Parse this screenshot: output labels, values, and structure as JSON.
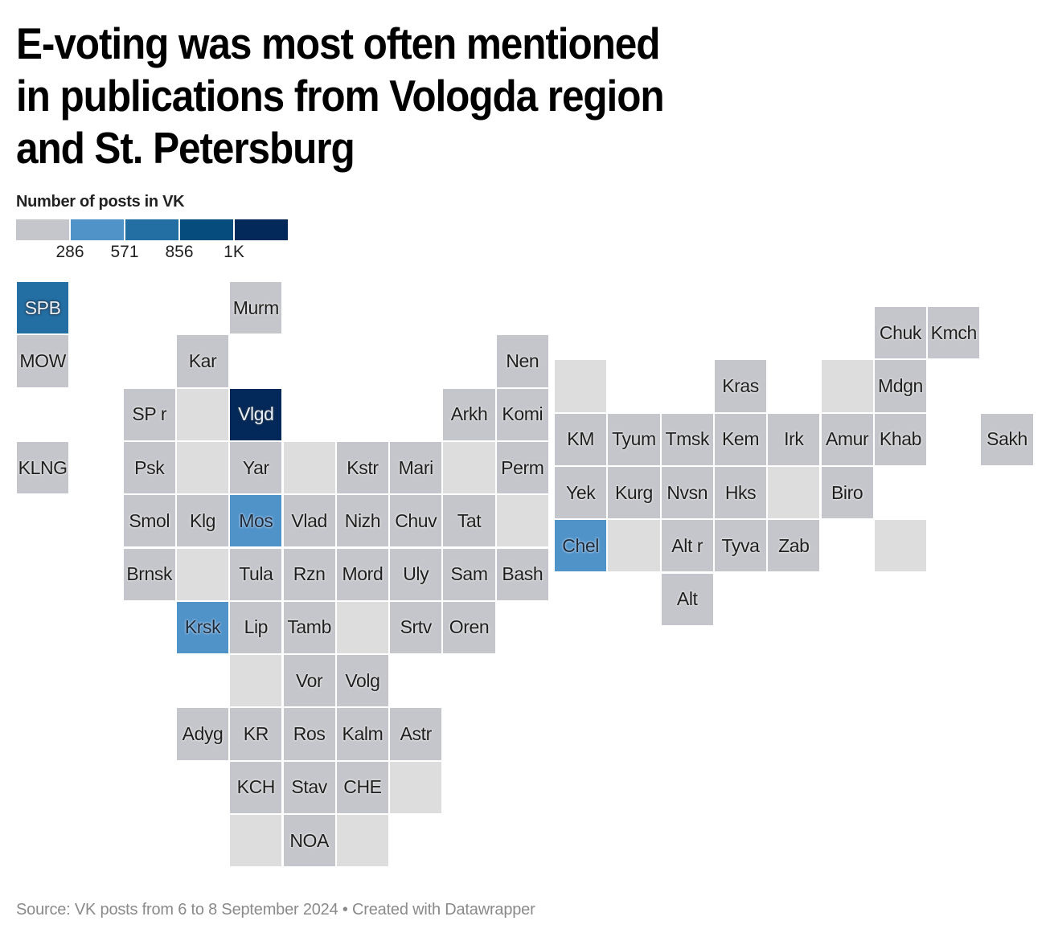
{
  "title_lines": [
    "E-voting was most often mentioned",
    "in publications from Vologda region",
    "and St. Petersburg"
  ],
  "legend": {
    "title": "Number of posts in VK",
    "bins": [
      {
        "color": "#c5c6cb",
        "label": "≤286"
      },
      {
        "color": "#5093c9",
        "label": "286–571"
      },
      {
        "color": "#236ea2",
        "label": "571–856"
      },
      {
        "color": "#064c7c",
        "label": "856–1K"
      },
      {
        "color": "#03295a",
        "label": "≥1K"
      }
    ],
    "ticks": [
      "286",
      "571",
      "856",
      "1K"
    ]
  },
  "colors": {
    "no_data": "#dddddd",
    "low": "#c5c6cb",
    "bin2": "#5093c9",
    "bin3": "#236ea2",
    "bin4": "#064c7c",
    "bin5": "#03295a"
  },
  "chart_data": {
    "type": "heatmap",
    "subtype": "tile-grid map of Russian regions",
    "title": "E-voting was most often mentioned in publications from Vologda region and St. Petersburg",
    "legend_title": "Number of posts in VK",
    "bin_breaks": [
      286,
      571,
      856,
      1000
    ],
    "regions": [
      {
        "label": "SPB",
        "bin": 3,
        "grid": "west",
        "col": 0,
        "row": 0
      },
      {
        "label": "MOW",
        "bin": 1,
        "grid": "west",
        "col": 0,
        "row": 1
      },
      {
        "label": "KLNG",
        "bin": 1,
        "grid": "west",
        "col": 0,
        "row": 3
      },
      {
        "label": "SP r",
        "bin": 1,
        "grid": "west",
        "col": 2,
        "row": 2
      },
      {
        "label": "Psk",
        "bin": 1,
        "grid": "west",
        "col": 2,
        "row": 3
      },
      {
        "label": "Smol",
        "bin": 1,
        "grid": "west",
        "col": 2,
        "row": 4
      },
      {
        "label": "Brnsk",
        "bin": 1,
        "grid": "west",
        "col": 2,
        "row": 5
      },
      {
        "label": "Kar",
        "bin": 1,
        "grid": "west",
        "col": 3,
        "row": 1
      },
      {
        "label": "",
        "bin": 0,
        "grid": "west",
        "col": 3,
        "row": 2
      },
      {
        "label": "",
        "bin": 0,
        "grid": "west",
        "col": 3,
        "row": 3
      },
      {
        "label": "Klg",
        "bin": 1,
        "grid": "west",
        "col": 3,
        "row": 4
      },
      {
        "label": "",
        "bin": 0,
        "grid": "west",
        "col": 3,
        "row": 5
      },
      {
        "label": "Krsk",
        "bin": 2,
        "grid": "west",
        "col": 3,
        "row": 6
      },
      {
        "label": "Adyg",
        "bin": 1,
        "grid": "west",
        "col": 3,
        "row": 8
      },
      {
        "label": "Murm",
        "bin": 1,
        "grid": "west",
        "col": 4,
        "row": 0
      },
      {
        "label": "Vlgd",
        "bin": 5,
        "grid": "west",
        "col": 4,
        "row": 2
      },
      {
        "label": "Yar",
        "bin": 1,
        "grid": "west",
        "col": 4,
        "row": 3
      },
      {
        "label": "Mos",
        "bin": 2,
        "grid": "west",
        "col": 4,
        "row": 4
      },
      {
        "label": "Tula",
        "bin": 1,
        "grid": "west",
        "col": 4,
        "row": 5
      },
      {
        "label": "Lip",
        "bin": 1,
        "grid": "west",
        "col": 4,
        "row": 6
      },
      {
        "label": "",
        "bin": 0,
        "grid": "west",
        "col": 4,
        "row": 7
      },
      {
        "label": "KR",
        "bin": 1,
        "grid": "west",
        "col": 4,
        "row": 8
      },
      {
        "label": "KCH",
        "bin": 1,
        "grid": "west",
        "col": 4,
        "row": 9
      },
      {
        "label": "",
        "bin": 0,
        "grid": "west",
        "col": 4,
        "row": 10
      },
      {
        "label": "",
        "bin": 0,
        "grid": "west",
        "col": 5,
        "row": 3
      },
      {
        "label": "Vlad",
        "bin": 1,
        "grid": "west",
        "col": 5,
        "row": 4
      },
      {
        "label": "Rzn",
        "bin": 1,
        "grid": "west",
        "col": 5,
        "row": 5
      },
      {
        "label": "Tamb",
        "bin": 1,
        "grid": "west",
        "col": 5,
        "row": 6
      },
      {
        "label": "Vor",
        "bin": 1,
        "grid": "west",
        "col": 5,
        "row": 7
      },
      {
        "label": "Ros",
        "bin": 1,
        "grid": "west",
        "col": 5,
        "row": 8
      },
      {
        "label": "Stav",
        "bin": 1,
        "grid": "west",
        "col": 5,
        "row": 9
      },
      {
        "label": "NOA",
        "bin": 1,
        "grid": "west",
        "col": 5,
        "row": 10
      },
      {
        "label": "Kstr",
        "bin": 1,
        "grid": "west",
        "col": 6,
        "row": 3
      },
      {
        "label": "Nizh",
        "bin": 1,
        "grid": "west",
        "col": 6,
        "row": 4
      },
      {
        "label": "Mord",
        "bin": 1,
        "grid": "west",
        "col": 6,
        "row": 5
      },
      {
        "label": "",
        "bin": 0,
        "grid": "west",
        "col": 6,
        "row": 6
      },
      {
        "label": "Volg",
        "bin": 1,
        "grid": "west",
        "col": 6,
        "row": 7
      },
      {
        "label": "Kalm",
        "bin": 1,
        "grid": "west",
        "col": 6,
        "row": 8
      },
      {
        "label": "CHE",
        "bin": 1,
        "grid": "west",
        "col": 6,
        "row": 9
      },
      {
        "label": "",
        "bin": 0,
        "grid": "west",
        "col": 6,
        "row": 10
      },
      {
        "label": "Mari",
        "bin": 1,
        "grid": "west",
        "col": 7,
        "row": 3
      },
      {
        "label": "Chuv",
        "bin": 1,
        "grid": "west",
        "col": 7,
        "row": 4
      },
      {
        "label": "Uly",
        "bin": 1,
        "grid": "west",
        "col": 7,
        "row": 5
      },
      {
        "label": "Srtv",
        "bin": 1,
        "grid": "west",
        "col": 7,
        "row": 6
      },
      {
        "label": "Astr",
        "bin": 1,
        "grid": "west",
        "col": 7,
        "row": 8
      },
      {
        "label": "",
        "bin": 0,
        "grid": "west",
        "col": 7,
        "row": 9
      },
      {
        "label": "Arkh",
        "bin": 1,
        "grid": "west",
        "col": 8,
        "row": 2
      },
      {
        "label": "",
        "bin": 0,
        "grid": "west",
        "col": 8,
        "row": 3
      },
      {
        "label": "Tat",
        "bin": 1,
        "grid": "west",
        "col": 8,
        "row": 4
      },
      {
        "label": "Sam",
        "bin": 1,
        "grid": "west",
        "col": 8,
        "row": 5
      },
      {
        "label": "Oren",
        "bin": 1,
        "grid": "west",
        "col": 8,
        "row": 6
      },
      {
        "label": "Nen",
        "bin": 1,
        "grid": "west",
        "col": 9,
        "row": 1
      },
      {
        "label": "Komi",
        "bin": 1,
        "grid": "west",
        "col": 9,
        "row": 2
      },
      {
        "label": "Perm",
        "bin": 1,
        "grid": "west",
        "col": 9,
        "row": 3
      },
      {
        "label": "",
        "bin": 0,
        "grid": "west",
        "col": 9,
        "row": 4
      },
      {
        "label": "Bash",
        "bin": 1,
        "grid": "west",
        "col": 9,
        "row": 5
      },
      {
        "label": "",
        "bin": 0,
        "grid": "east",
        "col": 0,
        "row": 1
      },
      {
        "label": "KM",
        "bin": 1,
        "grid": "east",
        "col": 0,
        "row": 2
      },
      {
        "label": "Yek",
        "bin": 1,
        "grid": "east",
        "col": 0,
        "row": 3
      },
      {
        "label": "Chel",
        "bin": 2,
        "grid": "east",
        "col": 0,
        "row": 4
      },
      {
        "label": "Tyum",
        "bin": 1,
        "grid": "east",
        "col": 1,
        "row": 2
      },
      {
        "label": "Kurg",
        "bin": 1,
        "grid": "east",
        "col": 1,
        "row": 3
      },
      {
        "label": "",
        "bin": 0,
        "grid": "east",
        "col": 1,
        "row": 4
      },
      {
        "label": "Tmsk",
        "bin": 1,
        "grid": "east",
        "col": 2,
        "row": 2
      },
      {
        "label": "Nvsn",
        "bin": 1,
        "grid": "east",
        "col": 2,
        "row": 3
      },
      {
        "label": "Alt r",
        "bin": 1,
        "grid": "east",
        "col": 2,
        "row": 4
      },
      {
        "label": "Alt",
        "bin": 1,
        "grid": "east",
        "col": 2,
        "row": 5
      },
      {
        "label": "Kras",
        "bin": 1,
        "grid": "east",
        "col": 3,
        "row": 1
      },
      {
        "label": "Kem",
        "bin": 1,
        "grid": "east",
        "col": 3,
        "row": 2
      },
      {
        "label": "Hks",
        "bin": 1,
        "grid": "east",
        "col": 3,
        "row": 3
      },
      {
        "label": "Tyva",
        "bin": 1,
        "grid": "east",
        "col": 3,
        "row": 4
      },
      {
        "label": "Irk",
        "bin": 1,
        "grid": "east",
        "col": 4,
        "row": 2
      },
      {
        "label": "",
        "bin": 0,
        "grid": "east",
        "col": 4,
        "row": 3
      },
      {
        "label": "Zab",
        "bin": 1,
        "grid": "east",
        "col": 4,
        "row": 4
      },
      {
        "label": "",
        "bin": 0,
        "grid": "east",
        "col": 5,
        "row": 1
      },
      {
        "label": "Amur",
        "bin": 1,
        "grid": "east",
        "col": 5,
        "row": 2
      },
      {
        "label": "Biro",
        "bin": 1,
        "grid": "east",
        "col": 5,
        "row": 3
      },
      {
        "label": "Chuk",
        "bin": 1,
        "grid": "east",
        "col": 6,
        "row": 0
      },
      {
        "label": "Mdgn",
        "bin": 1,
        "grid": "east",
        "col": 6,
        "row": 1
      },
      {
        "label": "Khab",
        "bin": 1,
        "grid": "east",
        "col": 6,
        "row": 2
      },
      {
        "label": "",
        "bin": 0,
        "grid": "east",
        "col": 6,
        "row": 4
      },
      {
        "label": "Kmch",
        "bin": 1,
        "grid": "east",
        "col": 7,
        "row": 0
      },
      {
        "label": "Sakh",
        "bin": 1,
        "grid": "east",
        "col": 8,
        "row": 2
      }
    ]
  },
  "footer": "Source: VK posts from 6 to 8 September 2024 • Created with Datawrapper"
}
